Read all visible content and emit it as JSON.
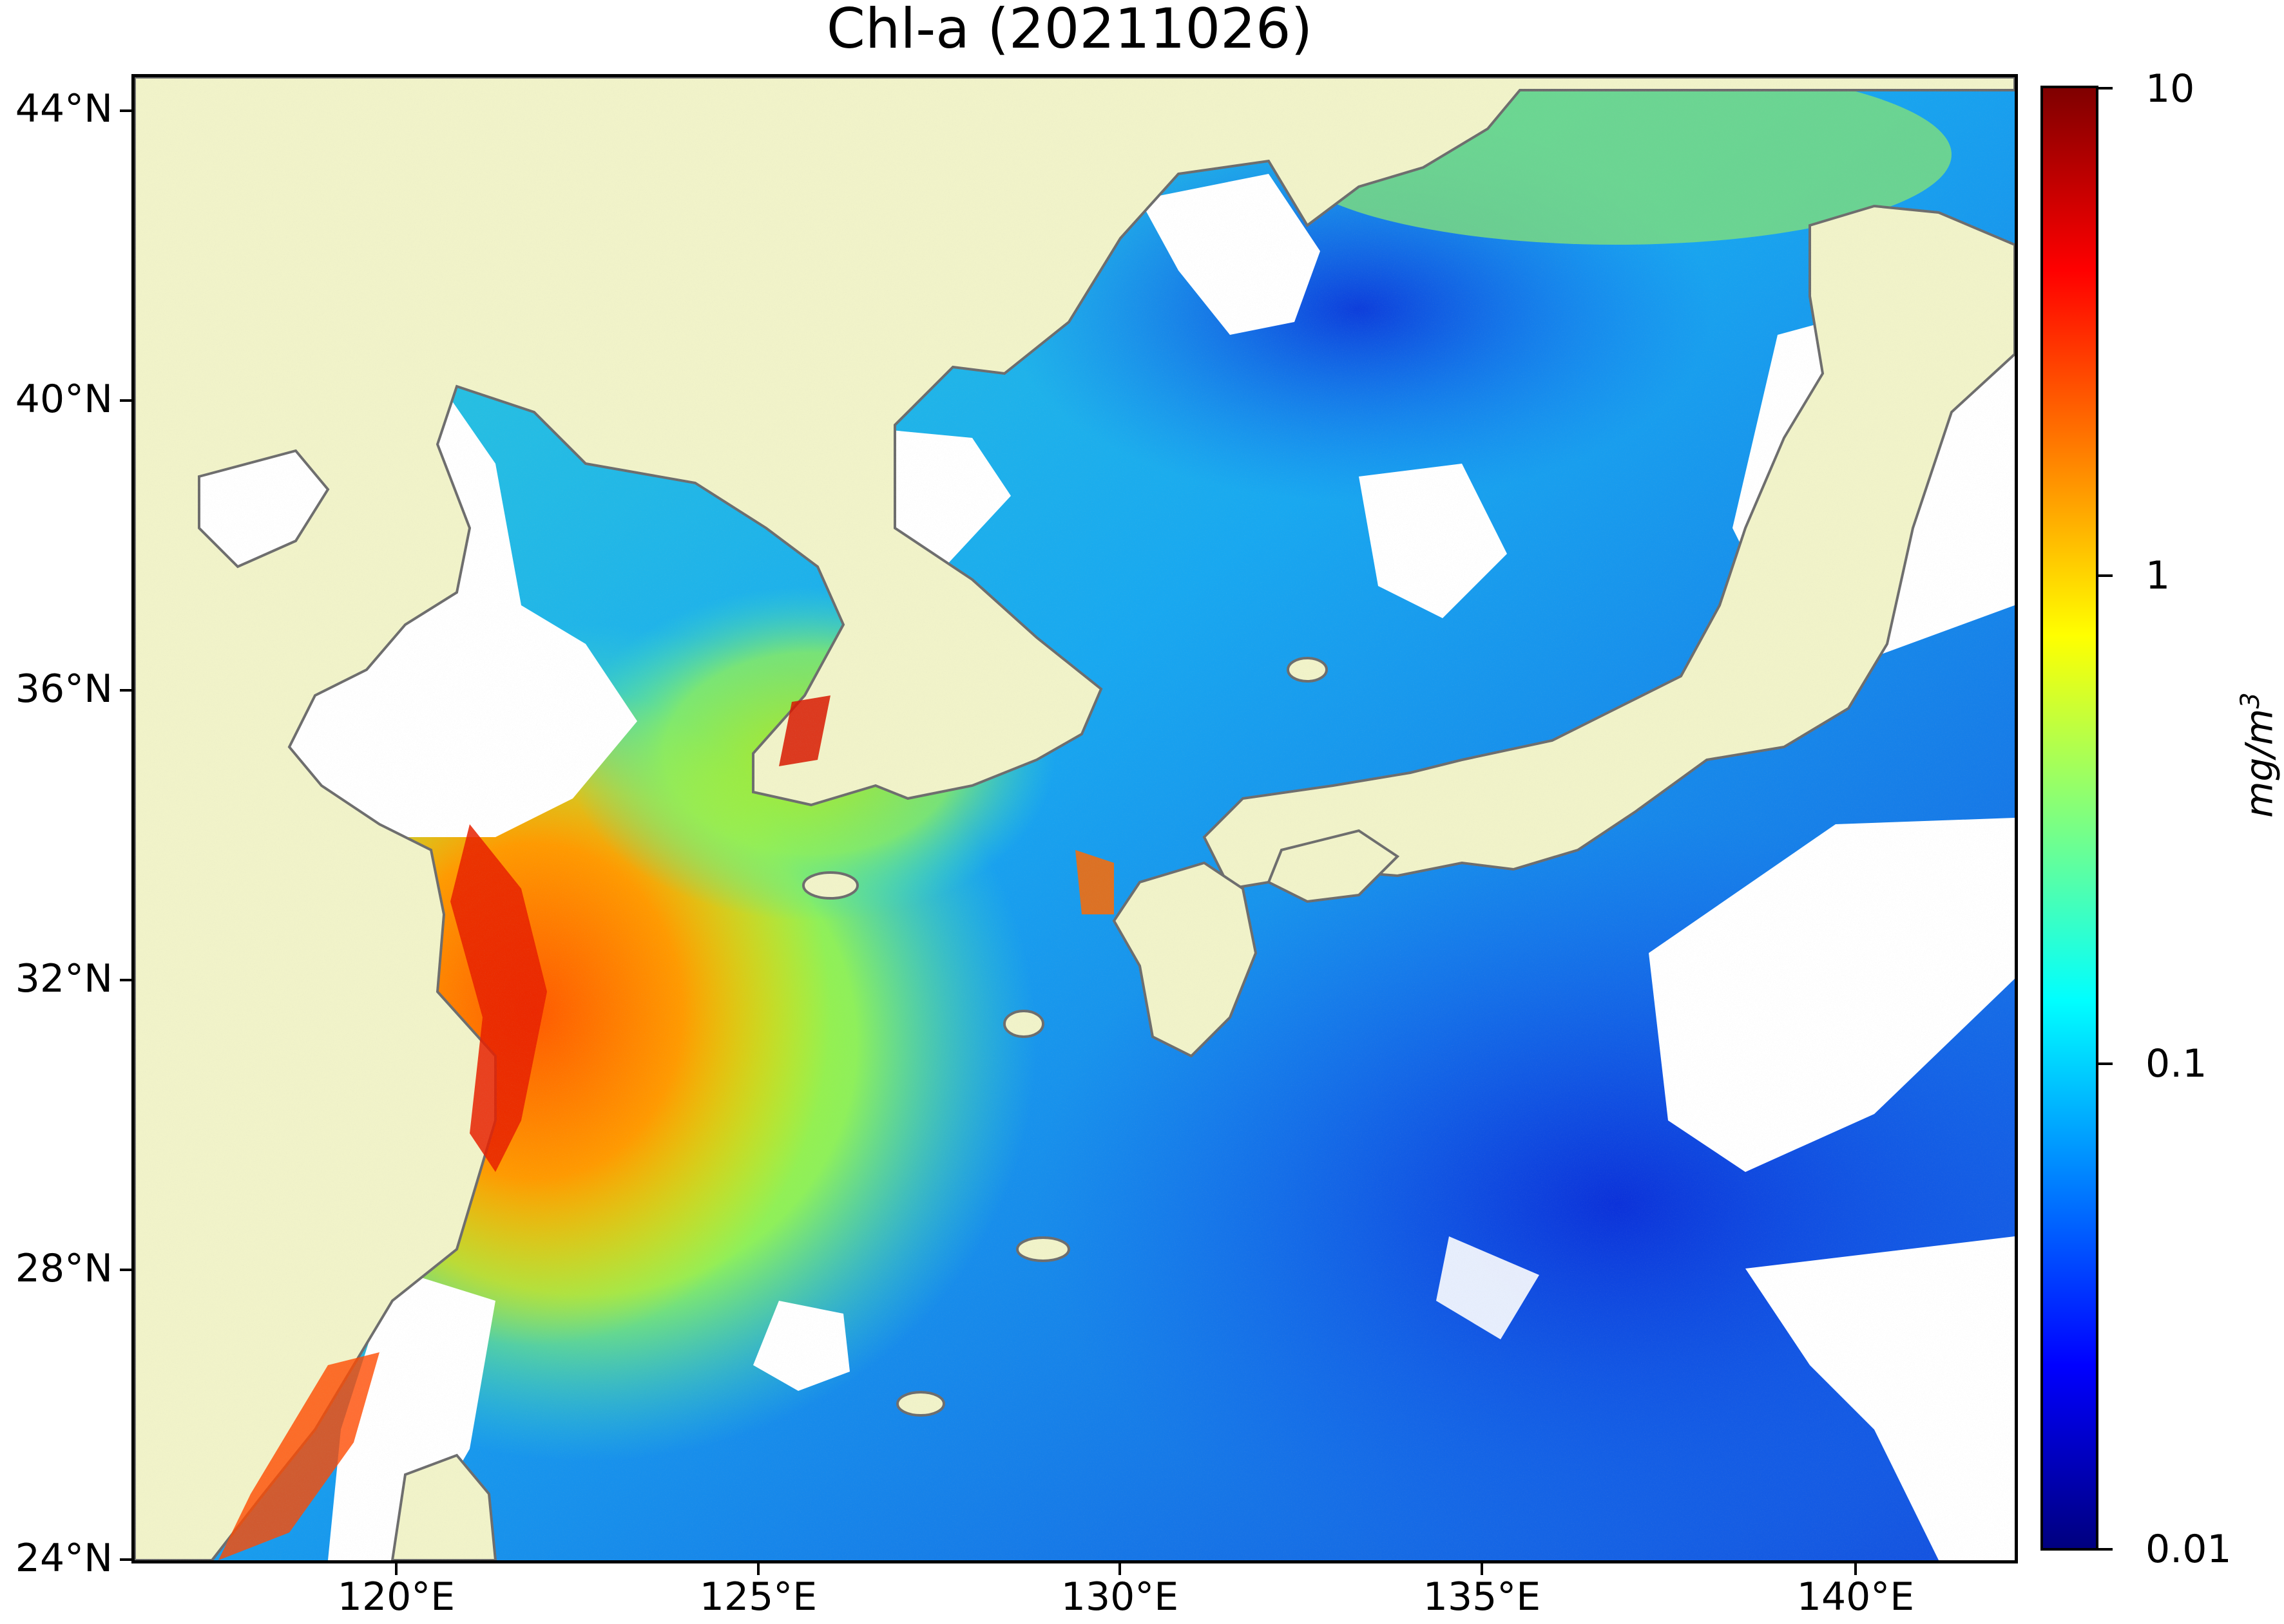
{
  "title": "Chl-a (20211026)",
  "map": {
    "lat_ticks": [
      "44°N",
      "40°N",
      "36°N",
      "32°N",
      "28°N",
      "24°N"
    ],
    "lon_ticks": [
      "120°E",
      "125°E",
      "130°E",
      "135°E",
      "140°E"
    ],
    "land_color": "#f1f3c9",
    "coastline_color": "#6d6d6d",
    "no_data_color": "#ffffff"
  },
  "colorbar": {
    "ticks": [
      "10",
      "1",
      "0.1",
      "0.01"
    ],
    "scale": "log",
    "range": [
      0.01,
      10
    ],
    "unit_base": "mg/m",
    "unit_exp": "3",
    "colormap": [
      "#00007f",
      "#0000ff",
      "#007fff",
      "#00ffff",
      "#7fff7f",
      "#ffff00",
      "#ff7f00",
      "#ff0000",
      "#7f0000"
    ]
  }
}
